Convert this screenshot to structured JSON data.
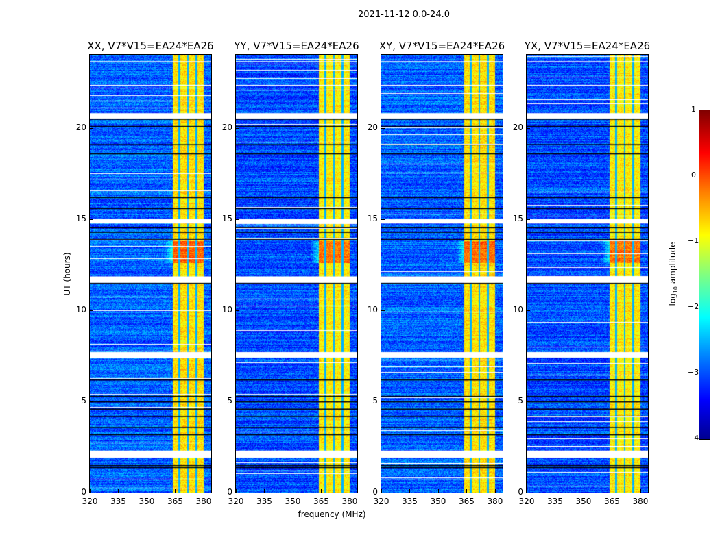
{
  "chart_data": {
    "type": "heatmap",
    "title": "2021-11-12 0.0-24.0",
    "xlabel": "frequency (MHz)",
    "ylabel": "UT (hours)",
    "xlim": [
      320,
      384
    ],
    "ylim": [
      0,
      24
    ],
    "xticks": [
      "320",
      "335",
      "350",
      "365",
      "380"
    ],
    "xtick_values": [
      320,
      335,
      350,
      365,
      380
    ],
    "yticks": [
      "0",
      "5",
      "10",
      "15",
      "20"
    ],
    "ytick_values": [
      0,
      5,
      10,
      15,
      20
    ],
    "panels": [
      {
        "title": "XX, V7*V15=EA24*EA26"
      },
      {
        "title": "YY, V7*V15=EA24*EA26"
      },
      {
        "title": "XY, V7*V15=EA24*EA26"
      },
      {
        "title": "YX, V7*V15=EA24*EA26"
      }
    ],
    "background_log_amplitude": -3.0,
    "signal_band_mhz": [
      363.5,
      380
    ],
    "signal_log_amplitude": -0.8,
    "band_gaps_mhz": [
      367,
      371.5,
      376
    ],
    "flagged_hours": [
      [
        1.9,
        2.3
      ],
      [
        7.4,
        7.7
      ],
      [
        11.5,
        11.85
      ],
      [
        14.75,
        15.0
      ],
      [
        20.5,
        20.8
      ],
      [
        23.6,
        23.65
      ],
      [
        22.3,
        22.35
      ]
    ],
    "dropout_hours": [
      1.4,
      1.5,
      3.2,
      3.6,
      4.2,
      4.6,
      5.0,
      5.3,
      6.2,
      11.5,
      13.9,
      14.3,
      14.55,
      15.6,
      16.2,
      18.6,
      19.1,
      20.1,
      20.5
    ],
    "colorbar": {
      "label": "log10 amplitude",
      "label_main": "log",
      "label_sub": "10",
      "label_rest": " amplitude",
      "range": [
        -4,
        1
      ],
      "ticks": [
        "1",
        "0",
        "−1",
        "−2",
        "−3",
        "−4"
      ],
      "tick_values": [
        1,
        0,
        -1,
        -2,
        -3,
        -4
      ],
      "colormap": "jet"
    }
  }
}
